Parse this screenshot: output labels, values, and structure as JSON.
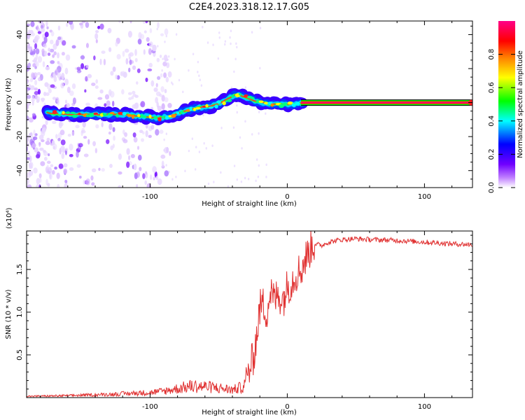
{
  "title": "C2E4.2023.318.12.17.G05",
  "chart_data": [
    {
      "type": "heatmap",
      "xlabel": "Height of straight line (km)",
      "ylabel": "Frequency (Hz)",
      "xlim": [
        -190,
        135
      ],
      "ylim": [
        -50,
        48
      ],
      "xticks": [
        -100,
        0,
        100
      ],
      "yticks": [
        -40,
        -20,
        0,
        20,
        40
      ],
      "colorbar": {
        "label": "Normalized spectral amplitude",
        "range": [
          0,
          1
        ],
        "ticks": [
          0.0,
          0.2,
          0.4,
          0.6,
          0.8
        ],
        "colors": [
          "#ffffff",
          "#8800ff",
          "#0000ff",
          "#00ffff",
          "#00ff00",
          "#ffff00",
          "#ff8800",
          "#ff0000",
          "#ff0088"
        ]
      },
      "ridge": {
        "x": [
          -175,
          -160,
          -140,
          -120,
          -105,
          -95,
          -85,
          -75,
          -65,
          -55,
          -48,
          -42,
          -36,
          -30,
          -24,
          -18,
          -12,
          -6,
          0,
          6,
          12,
          20,
          40,
          80,
          135
        ],
        "y": [
          -6,
          -7,
          -7,
          -7,
          -8,
          -9,
          -8,
          -5,
          -3,
          -2,
          0,
          3,
          5,
          3,
          1,
          0,
          -1,
          -1,
          -1,
          -1,
          0,
          0,
          0,
          0,
          0
        ]
      },
      "noise_band_x": [
        -190,
        -95
      ]
    },
    {
      "type": "line",
      "xlabel": "Height of straight line (km)",
      "ylabel": "SNR (10 * v/v)",
      "y_multiplier": "(x10⁴)",
      "xlim": [
        -190,
        135
      ],
      "ylim": [
        0,
        1.95
      ],
      "xticks": [
        -100,
        0,
        100
      ],
      "yticks": [
        0.5,
        1.0,
        1.5
      ],
      "ytick_labels": [
        "0.5",
        "1.0",
        "1.5"
      ],
      "series": [
        {
          "color": "#e03030",
          "x": [
            -190,
            -160,
            -130,
            -100,
            -90,
            -80,
            -70,
            -60,
            -50,
            -40,
            -35,
            -30,
            -27,
            -25,
            -22,
            -20,
            -18,
            -15,
            -12,
            -10,
            -6,
            -3,
            0,
            3,
            6,
            10,
            14,
            18,
            20,
            25,
            30,
            40,
            50,
            60,
            80,
            100,
            120,
            135
          ],
          "y": [
            0.02,
            0.03,
            0.05,
            0.08,
            0.1,
            0.14,
            0.18,
            0.17,
            0.15,
            0.12,
            0.15,
            0.2,
            0.35,
            0.45,
            0.75,
            1.05,
            1.1,
            1.0,
            1.25,
            1.15,
            1.2,
            1.15,
            1.3,
            1.35,
            1.45,
            1.5,
            1.65,
            1.78,
            1.8,
            1.78,
            1.82,
            1.85,
            1.86,
            1.85,
            1.84,
            1.82,
            1.8,
            1.79
          ]
        }
      ]
    }
  ]
}
